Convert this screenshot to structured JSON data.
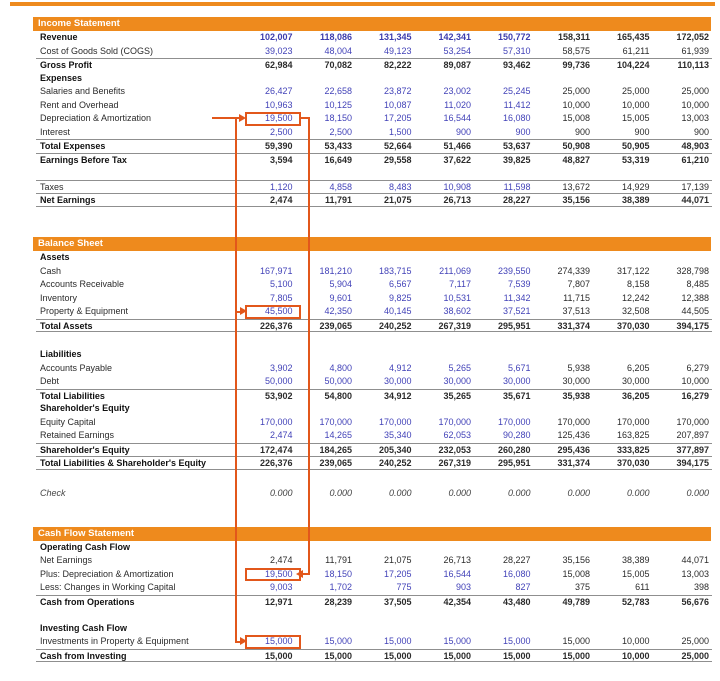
{
  "page_title": "3 Statement Financial Model",
  "colors": {
    "section_bar": "#EE8A1D",
    "connector": "#E2571B",
    "input_number": "#4242B8",
    "computed_number": "#111111"
  },
  "column_count": 8,
  "sections": [
    {
      "id": "income-statement",
      "title": "Income Statement",
      "rows": [
        {
          "label": "Revenue",
          "style": "input-bold",
          "label_bold": true,
          "values": [
            "102,007",
            "118,086",
            "131,345",
            "142,341",
            "150,772",
            "158,311",
            "165,435",
            "172,052"
          ]
        },
        {
          "label": "Cost of Goods Sold (COGS)",
          "style": "input",
          "values": [
            "39,023",
            "48,004",
            "49,123",
            "53,254",
            "57,310",
            "58,575",
            "61,211",
            "61,939"
          ]
        },
        {
          "label": "Gross Profit",
          "style": "total",
          "label_bold": true,
          "border_top": true,
          "values": [
            "62,984",
            "70,082",
            "82,222",
            "89,087",
            "93,462",
            "99,736",
            "104,224",
            "110,113"
          ]
        },
        {
          "label": "Expenses",
          "label_bold": true
        },
        {
          "label": "Salaries and Benefits",
          "style": "input",
          "values": [
            "26,427",
            "22,658",
            "23,872",
            "23,002",
            "25,245",
            "25,000",
            "25,000",
            "25,000"
          ]
        },
        {
          "label": "Rent and Overhead",
          "style": "input",
          "values": [
            "10,963",
            "10,125",
            "10,087",
            "11,020",
            "11,412",
            "10,000",
            "10,000",
            "10,000"
          ]
        },
        {
          "label": "Depreciation & Amortization",
          "style": "input",
          "boxed": true,
          "values": [
            "19,500",
            "18,150",
            "17,205",
            "16,544",
            "16,080",
            "15,008",
            "15,005",
            "13,003"
          ]
        },
        {
          "label": "Interest",
          "style": "input",
          "values": [
            "2,500",
            "2,500",
            "1,500",
            "900",
            "900",
            "900",
            "900",
            "900"
          ]
        },
        {
          "label": "Total Expenses",
          "style": "total",
          "label_bold": true,
          "border_top": true,
          "values": [
            "59,390",
            "53,433",
            "52,664",
            "51,466",
            "53,637",
            "50,908",
            "50,905",
            "48,903"
          ]
        },
        {
          "label": "Earnings Before Tax",
          "style": "total",
          "label_bold": true,
          "border_top": true,
          "values": [
            "3,594",
            "16,649",
            "29,558",
            "37,622",
            "39,825",
            "48,827",
            "53,319",
            "61,210"
          ]
        },
        {
          "type": "spacer",
          "height": 13.5
        },
        {
          "label": "Taxes",
          "style": "input",
          "border_top": true,
          "values": [
            "1,120",
            "4,858",
            "8,483",
            "10,908",
            "11,598",
            "13,672",
            "14,929",
            "17,139"
          ]
        },
        {
          "label": "Net Earnings",
          "style": "total",
          "label_bold": true,
          "border_top": true,
          "border_bottom": true,
          "values": [
            "2,474",
            "11,791",
            "21,075",
            "26,713",
            "28,227",
            "35,156",
            "38,389",
            "44,071"
          ]
        }
      ]
    },
    {
      "id": "balance-sheet",
      "title": "Balance Sheet",
      "rows": [
        {
          "label": "Assets",
          "label_bold": true
        },
        {
          "label": "Cash",
          "style": "input",
          "values": [
            "167,971",
            "181,210",
            "183,715",
            "211,069",
            "239,550",
            "274,339",
            "317,122",
            "328,798"
          ]
        },
        {
          "label": "Accounts Receivable",
          "style": "input",
          "values": [
            "5,100",
            "5,904",
            "6,567",
            "7,117",
            "7,539",
            "7,807",
            "8,158",
            "8,485"
          ]
        },
        {
          "label": "Inventory",
          "style": "input",
          "values": [
            "7,805",
            "9,601",
            "9,825",
            "10,531",
            "11,342",
            "11,715",
            "12,242",
            "12,388"
          ]
        },
        {
          "label": "Property & Equipment",
          "style": "input",
          "boxed": true,
          "values": [
            "45,500",
            "42,350",
            "40,145",
            "38,602",
            "37,521",
            "37,513",
            "32,508",
            "44,505"
          ]
        },
        {
          "label": "Total Assets",
          "style": "total",
          "label_bold": true,
          "border_top": true,
          "border_bottom": true,
          "values": [
            "226,376",
            "239,065",
            "240,252",
            "267,319",
            "295,951",
            "331,374",
            "370,030",
            "394,175"
          ]
        },
        {
          "type": "spacer",
          "height": 16
        },
        {
          "label": "Liabilities",
          "label_bold": true
        },
        {
          "label": "Accounts Payable",
          "style": "input",
          "values": [
            "3,902",
            "4,800",
            "4,912",
            "5,265",
            "5,671",
            "5,938",
            "6,205",
            "6,279"
          ]
        },
        {
          "label": "Debt",
          "style": "input",
          "values": [
            "50,000",
            "50,000",
            "30,000",
            "30,000",
            "30,000",
            "30,000",
            "30,000",
            "10,000"
          ]
        },
        {
          "label": "Total Liabilities",
          "style": "total",
          "label_bold": true,
          "border_top": true,
          "values": [
            "53,902",
            "54,800",
            "34,912",
            "35,265",
            "35,671",
            "35,938",
            "36,205",
            "16,279"
          ]
        },
        {
          "label": "Shareholder's Equity",
          "label_bold": true
        },
        {
          "label": "Equity Capital",
          "style": "input",
          "values": [
            "170,000",
            "170,000",
            "170,000",
            "170,000",
            "170,000",
            "170,000",
            "170,000",
            "170,000"
          ]
        },
        {
          "label": "Retained Earnings",
          "style": "input",
          "values": [
            "2,474",
            "14,265",
            "35,340",
            "62,053",
            "90,280",
            "125,436",
            "163,825",
            "207,897"
          ]
        },
        {
          "label": "Shareholder's Equity",
          "style": "total",
          "label_bold": true,
          "border_top": true,
          "values": [
            "172,474",
            "184,265",
            "205,340",
            "232,053",
            "260,280",
            "295,436",
            "333,825",
            "377,897"
          ]
        },
        {
          "label": "Total Liabilities & Shareholder's Equity",
          "style": "total",
          "label_bold": true,
          "border_top": true,
          "border_bottom": true,
          "values": [
            "226,376",
            "239,065",
            "240,252",
            "267,319",
            "295,951",
            "331,374",
            "370,030",
            "394,175"
          ]
        },
        {
          "type": "spacer",
          "height": 17
        },
        {
          "label": "Check",
          "style": "check",
          "italic": true,
          "values": [
            "0.000",
            "0.000",
            "0.000",
            "0.000",
            "0.000",
            "0.000",
            "0.000",
            "0.000"
          ]
        }
      ]
    },
    {
      "id": "cash-flow-statement",
      "title": "Cash Flow Statement",
      "rows": [
        {
          "label": "Operating Cash Flow",
          "label_bold": true
        },
        {
          "label": "Net Earnings",
          "style": "black",
          "values": [
            "2,474",
            "11,791",
            "21,075",
            "26,713",
            "28,227",
            "35,156",
            "38,389",
            "44,071"
          ]
        },
        {
          "label": "Plus: Depreciation & Amortization",
          "style": "input",
          "boxed": true,
          "values": [
            "19,500",
            "18,150",
            "17,205",
            "16,544",
            "16,080",
            "15,008",
            "15,005",
            "13,003"
          ]
        },
        {
          "label": "Less: Changes in Working Capital",
          "style": "input",
          "values": [
            "9,003",
            "1,702",
            "775",
            "903",
            "827",
            "375",
            "611",
            "398"
          ]
        },
        {
          "label": "Cash from Operations",
          "style": "total",
          "label_bold": true,
          "border_top": true,
          "values": [
            "12,971",
            "28,239",
            "37,505",
            "42,354",
            "43,480",
            "49,789",
            "52,783",
            "56,676"
          ]
        },
        {
          "type": "spacer",
          "height": 13.5
        },
        {
          "label": "Investing Cash Flow",
          "label_bold": true
        },
        {
          "label": "Investments in Property & Equipment",
          "style": "input",
          "boxed": true,
          "values": [
            "15,000",
            "15,000",
            "15,000",
            "15,000",
            "15,000",
            "15,000",
            "10,000",
            "25,000"
          ]
        },
        {
          "label": "Cash from Investing",
          "style": "total",
          "label_bold": true,
          "border_top": true,
          "border_bottom": true,
          "values": [
            "15,000",
            "15,000",
            "15,000",
            "15,000",
            "15,000",
            "15,000",
            "10,000",
            "25,000"
          ]
        }
      ]
    }
  ]
}
